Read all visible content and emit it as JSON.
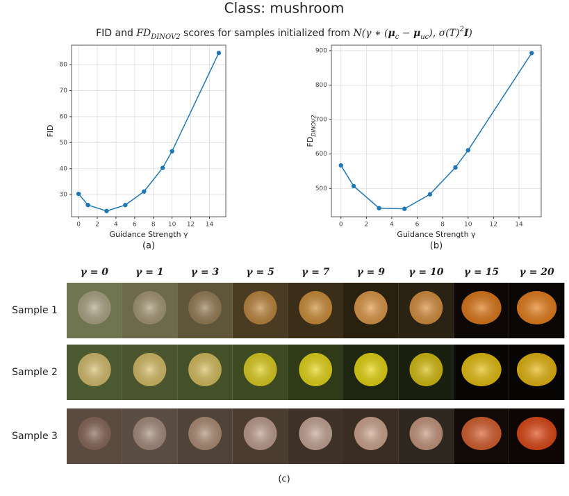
{
  "title": "Class: mushroom",
  "subtitle": [
    {
      "text": "FID and "
    },
    {
      "text": "FD",
      "style": "math"
    },
    {
      "text": "DINOV2",
      "style": "math",
      "shift": "sub"
    },
    {
      "text": " scores for samples initialized from "
    },
    {
      "text": "N(γ ∗ (",
      "style": "math"
    },
    {
      "text": "μ",
      "style": "math-bold"
    },
    {
      "text": "c",
      "style": "math",
      "shift": "sub"
    },
    {
      "text": " − ",
      "style": "math"
    },
    {
      "text": "μ",
      "style": "math-bold"
    },
    {
      "text": "uc",
      "style": "math",
      "shift": "sub"
    },
    {
      "text": "), σ(T)",
      "style": "math"
    },
    {
      "text": "2",
      "style": "math",
      "shift": "super"
    },
    {
      "text": "I",
      "style": "math-bold"
    },
    {
      "text": ")",
      "style": "math"
    }
  ],
  "chart_data": [
    {
      "type": "line",
      "x": [
        0,
        1,
        3,
        5,
        7,
        9,
        10,
        15
      ],
      "values": [
        30.3,
        26,
        23.7,
        26,
        31.2,
        40.3,
        46.7,
        84.5
      ],
      "color": "#1f77b4",
      "xlim": [
        -0.75,
        15.75
      ],
      "ylim": [
        21.5,
        87.5
      ],
      "xticks": [
        0,
        2,
        4,
        6,
        8,
        10,
        12,
        14
      ],
      "yticks": [
        30,
        40,
        50,
        60,
        70,
        80
      ],
      "xlabel": "Guidance Strength γ",
      "ylabel": "FID",
      "caption": "(a)",
      "grid": true
    },
    {
      "type": "line",
      "x": [
        0,
        1,
        3,
        5,
        7,
        9,
        10,
        15
      ],
      "values": [
        567,
        507,
        443,
        441,
        483,
        561,
        611,
        893
      ],
      "color": "#1f77b4",
      "xlim": [
        -0.75,
        15.75
      ],
      "ylim": [
        418,
        916
      ],
      "xticks": [
        0,
        2,
        4,
        6,
        8,
        10,
        12,
        14
      ],
      "yticks": [
        500,
        600,
        700,
        800,
        900
      ],
      "xlabel": "Guidance Strength γ",
      "ylabel": "FD",
      "ylabel_sub": "DINOV2",
      "caption": "(b)",
      "grid": true
    }
  ],
  "samples": {
    "columns": [
      "γ = 0",
      "γ = 1",
      "γ = 3",
      "γ = 5",
      "γ = 7",
      "γ = 9",
      "γ = 10",
      "γ = 15",
      "γ = 20"
    ],
    "rows": [
      "Sample 1",
      "Sample 2",
      "Sample 3"
    ],
    "caption": "(c)"
  }
}
